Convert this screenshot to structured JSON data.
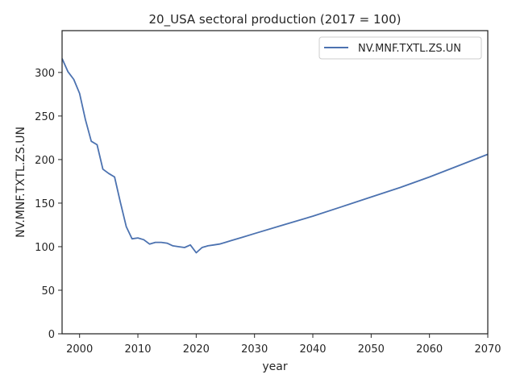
{
  "chart_data": {
    "type": "line",
    "title": "20_USA sectoral production (2017 = 100)",
    "xlabel": "year",
    "ylabel": "NV.MNF.TXTL.ZS.UN",
    "xlim": [
      1997,
      2070
    ],
    "ylim": [
      0,
      348
    ],
    "xticks": [
      2000,
      2010,
      2020,
      2030,
      2040,
      2050,
      2060,
      2070
    ],
    "yticks": [
      0,
      50,
      100,
      150,
      200,
      250,
      300
    ],
    "grid": false,
    "legend_position": "top-right",
    "series": [
      {
        "name": "NV.MNF.TXTL.ZS.UN",
        "color": "#4c72b0",
        "x": [
          1997,
          1998,
          1999,
          2000,
          2001,
          2002,
          2003,
          2004,
          2005,
          2006,
          2007,
          2008,
          2009,
          2010,
          2011,
          2012,
          2013,
          2014,
          2015,
          2016,
          2017,
          2018,
          2019,
          2020,
          2021,
          2022,
          2023,
          2024,
          2025,
          2026,
          2028,
          2030,
          2035,
          2040,
          2045,
          2050,
          2055,
          2060,
          2065,
          2070
        ],
        "y": [
          316,
          301,
          292,
          276,
          246,
          221,
          217,
          189,
          184,
          180,
          151,
          123,
          109,
          110,
          108,
          103,
          105,
          105,
          104,
          101,
          100,
          99,
          102,
          93,
          99,
          101,
          102,
          103,
          105,
          107,
          111,
          115,
          125,
          135,
          146,
          157,
          168,
          180,
          193,
          206
        ]
      }
    ]
  }
}
